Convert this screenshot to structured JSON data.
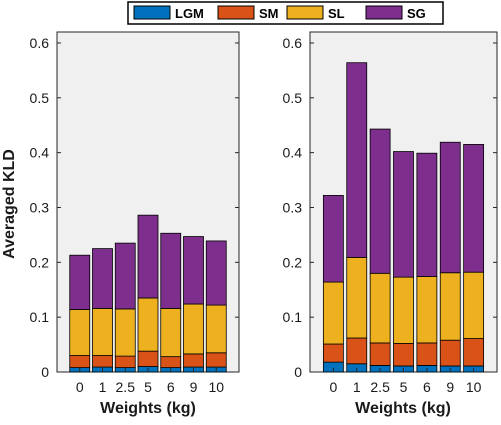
{
  "legend": {
    "items": [
      {
        "label": "LGM",
        "color": "#0072BD"
      },
      {
        "label": "SM",
        "color": "#D95319"
      },
      {
        "label": "SL",
        "color": "#EDB120"
      },
      {
        "label": "SG",
        "color": "#7E2F8E"
      }
    ]
  },
  "chart_data": [
    {
      "type": "bar",
      "stacked": true,
      "categories": [
        "0",
        "1",
        "2.5",
        "5",
        "6",
        "9",
        "10"
      ],
      "xlabel": "Weights (kg)",
      "ylabel": "Averaged KLD",
      "ylim": [
        0,
        0.62
      ],
      "yticks": [
        "0",
        "0.1",
        "0.2",
        "0.3",
        "0.4",
        "0.5",
        "0.6"
      ],
      "series": [
        {
          "name": "LGM",
          "color": "#0072BD",
          "values": [
            0.008,
            0.009,
            0.008,
            0.01,
            0.008,
            0.009,
            0.009
          ]
        },
        {
          "name": "SM",
          "color": "#D95319",
          "values": [
            0.022,
            0.021,
            0.021,
            0.028,
            0.02,
            0.024,
            0.026
          ]
        },
        {
          "name": "SL",
          "color": "#EDB120",
          "values": [
            0.084,
            0.086,
            0.086,
            0.097,
            0.088,
            0.091,
            0.087
          ]
        },
        {
          "name": "SG",
          "color": "#7E2F8E",
          "values": [
            0.099,
            0.109,
            0.12,
            0.151,
            0.137,
            0.123,
            0.117
          ]
        }
      ],
      "totals": [
        0.213,
        0.225,
        0.235,
        0.286,
        0.253,
        0.247,
        0.239
      ]
    },
    {
      "type": "bar",
      "stacked": true,
      "categories": [
        "0",
        "1",
        "2.5",
        "5",
        "6",
        "9",
        "10"
      ],
      "xlabel": "Weights (kg)",
      "ylabel": "",
      "ylim": [
        0,
        0.62
      ],
      "yticks": [
        "0",
        "0.1",
        "0.2",
        "0.3",
        "0.4",
        "0.5",
        "0.6"
      ],
      "series": [
        {
          "name": "LGM",
          "color": "#0072BD",
          "values": [
            0.018,
            0.015,
            0.012,
            0.011,
            0.012,
            0.011,
            0.011
          ]
        },
        {
          "name": "SM",
          "color": "#D95319",
          "values": [
            0.033,
            0.047,
            0.041,
            0.041,
            0.041,
            0.047,
            0.05
          ]
        },
        {
          "name": "SL",
          "color": "#EDB120",
          "values": [
            0.113,
            0.147,
            0.127,
            0.121,
            0.121,
            0.123,
            0.121
          ]
        },
        {
          "name": "SG",
          "color": "#7E2F8E",
          "values": [
            0.158,
            0.355,
            0.263,
            0.229,
            0.225,
            0.238,
            0.233
          ]
        }
      ],
      "totals": [
        0.322,
        0.564,
        0.443,
        0.402,
        0.399,
        0.419,
        0.415
      ]
    }
  ]
}
